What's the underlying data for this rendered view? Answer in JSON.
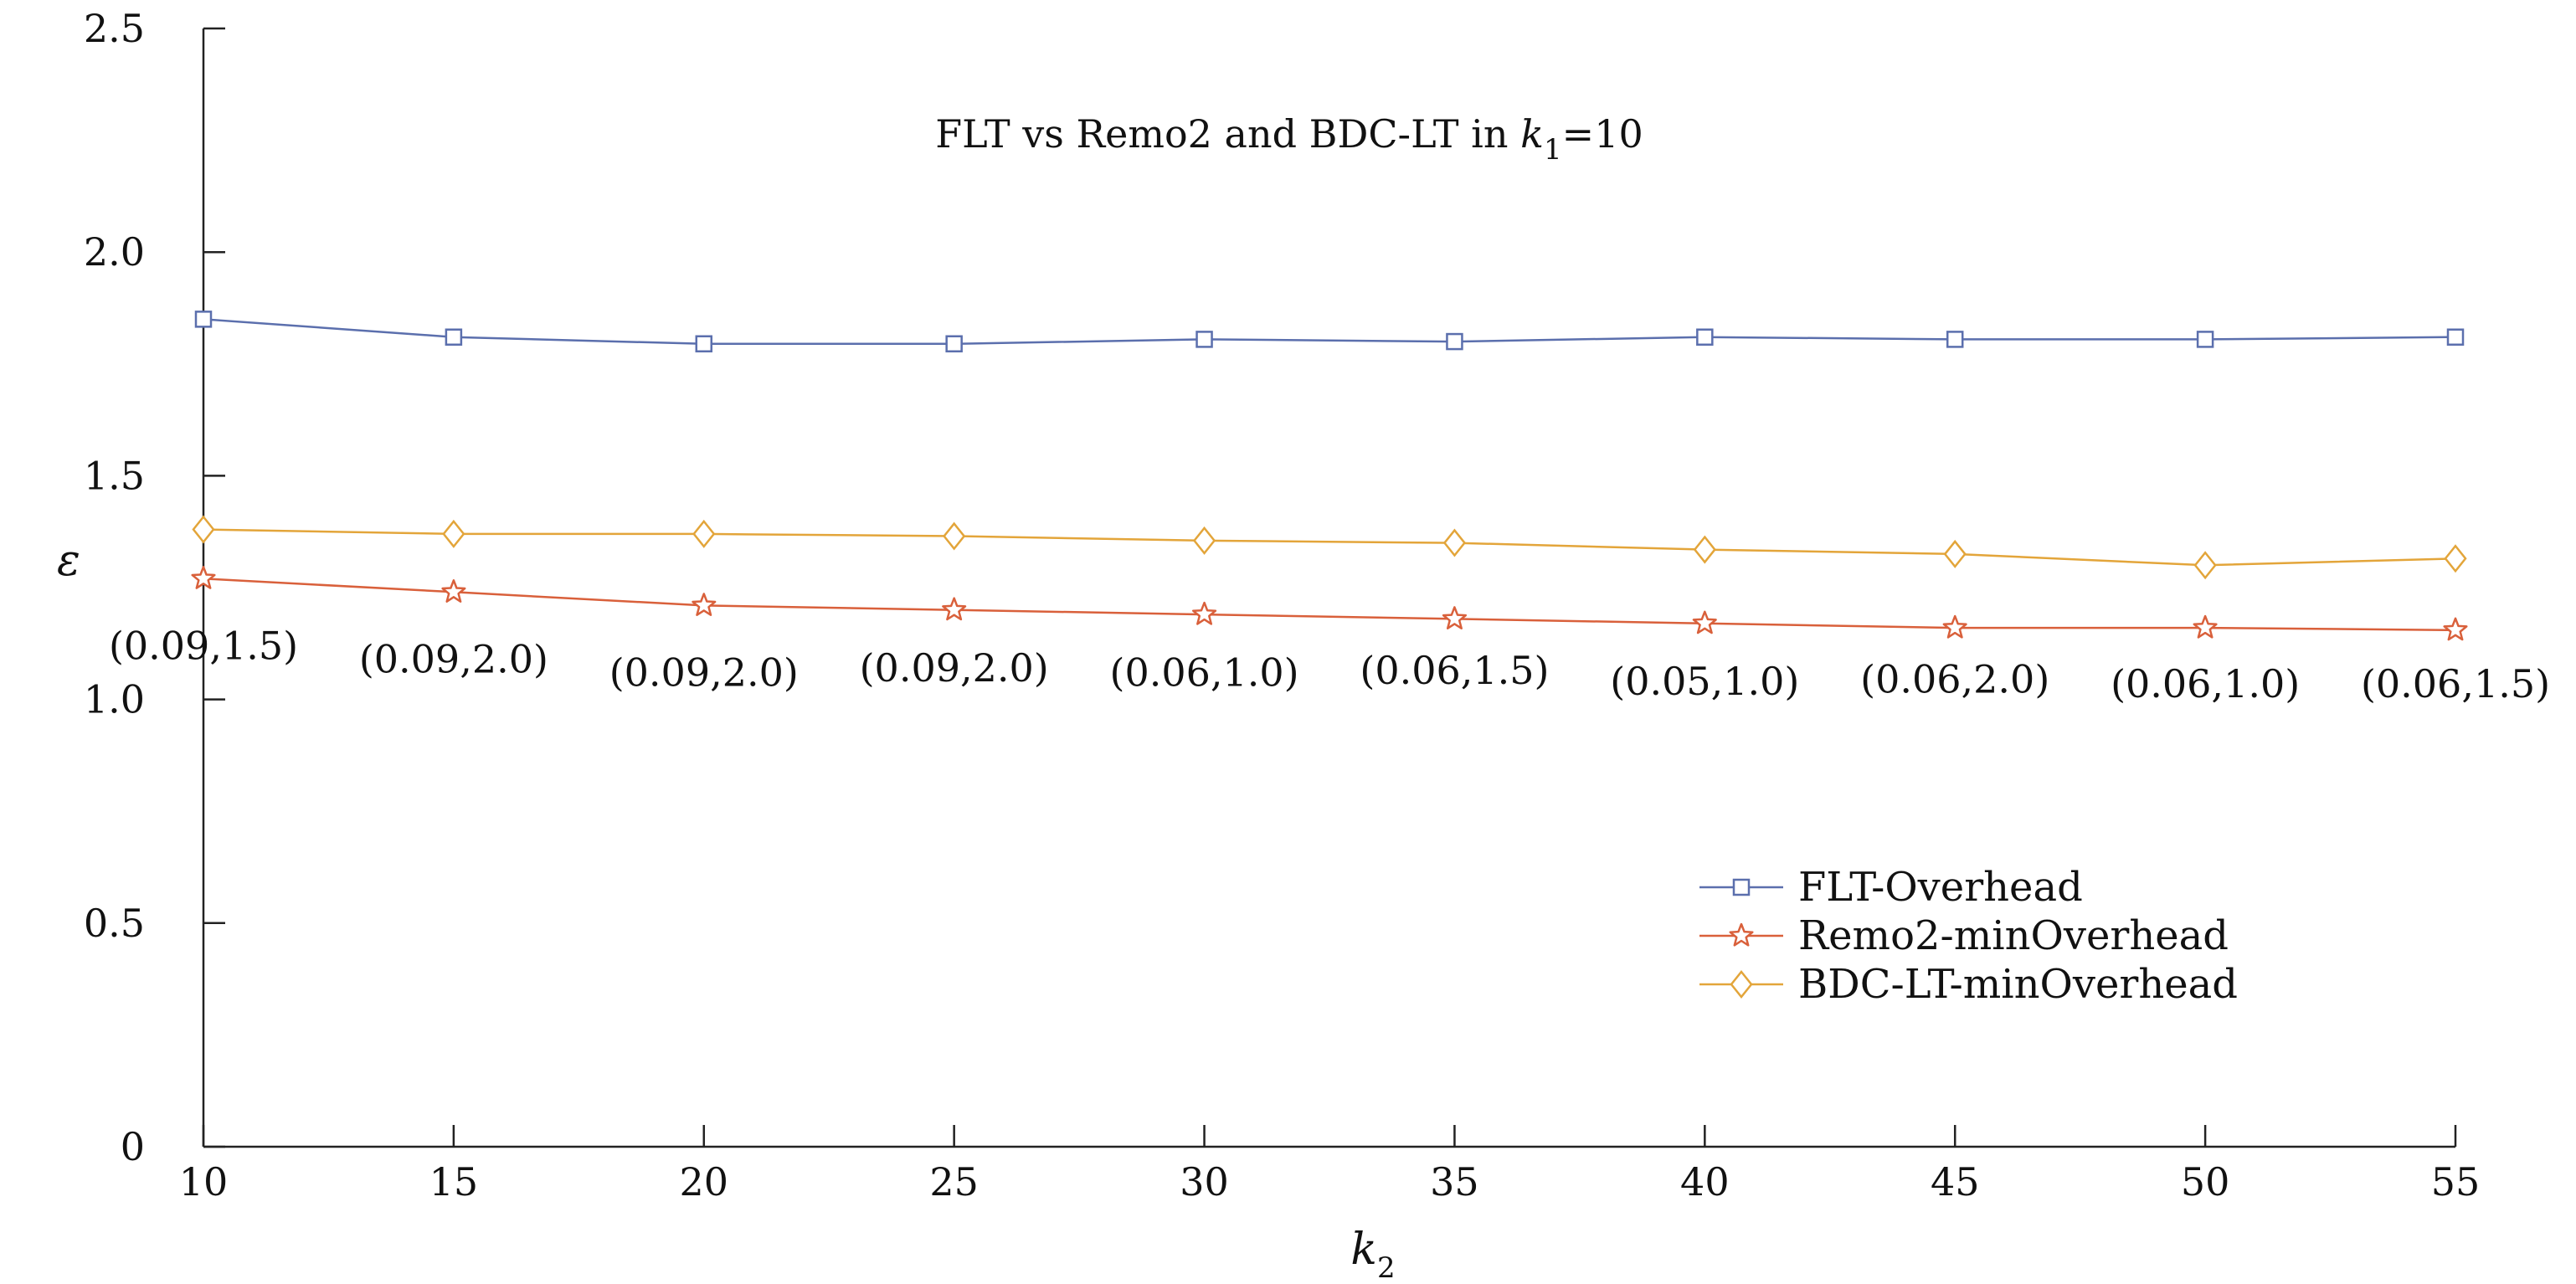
{
  "chart_data": {
    "type": "line",
    "title": {
      "prefix": "FLT vs Remo2 and BDC-LT in ",
      "var": "k",
      "sub": "1",
      "suffix": "=10"
    },
    "xlabel": {
      "var": "k",
      "sub": "2"
    },
    "ylabel": "ε",
    "x": [
      10,
      15,
      20,
      25,
      30,
      35,
      40,
      45,
      50,
      55
    ],
    "xlim": [
      10,
      55
    ],
    "ylim": [
      0,
      2.5
    ],
    "yticks": [
      "0",
      "0.5",
      "1.0",
      "1.5",
      "2.0",
      "2.5"
    ],
    "xticks": [
      "10",
      "15",
      "20",
      "25",
      "30",
      "35",
      "40",
      "45",
      "50",
      "55"
    ],
    "grid": false,
    "legend_position": "lower-right",
    "series": [
      {
        "name": "FLT-Overhead",
        "marker": "square",
        "color": "#5b6fad",
        "values": [
          1.85,
          1.81,
          1.795,
          1.795,
          1.805,
          1.8,
          1.81,
          1.805,
          1.805,
          1.81
        ]
      },
      {
        "name": "Remo2-minOverhead",
        "marker": "star",
        "color": "#d9603b",
        "values": [
          1.27,
          1.24,
          1.21,
          1.2,
          1.19,
          1.18,
          1.17,
          1.16,
          1.16,
          1.155
        ]
      },
      {
        "name": "BDC-LT-minOverhead",
        "marker": "diamond",
        "color": "#e3a53a",
        "values": [
          1.38,
          1.37,
          1.37,
          1.365,
          1.355,
          1.35,
          1.335,
          1.325,
          1.3,
          1.315
        ]
      }
    ],
    "annotations": [
      {
        "x": 10,
        "text": "(0.09,1.5)",
        "y": 1.12
      },
      {
        "x": 15,
        "text": "(0.09,2.0)",
        "y": 1.09
      },
      {
        "x": 20,
        "text": "(0.09,2.0)",
        "y": 1.06
      },
      {
        "x": 25,
        "text": "(0.09,2.0)",
        "y": 1.07
      },
      {
        "x": 30,
        "text": "(0.06,1.0)",
        "y": 1.06
      },
      {
        "x": 35,
        "text": "(0.06,1.5)",
        "y": 1.065
      },
      {
        "x": 40,
        "text": "(0.05,1.0)",
        "y": 1.04
      },
      {
        "x": 45,
        "text": "(0.06,2.0)",
        "y": 1.045
      },
      {
        "x": 50,
        "text": "(0.06,1.0)",
        "y": 1.035
      },
      {
        "x": 55,
        "text": "(0.06,1.5)",
        "y": 1.035
      }
    ]
  }
}
